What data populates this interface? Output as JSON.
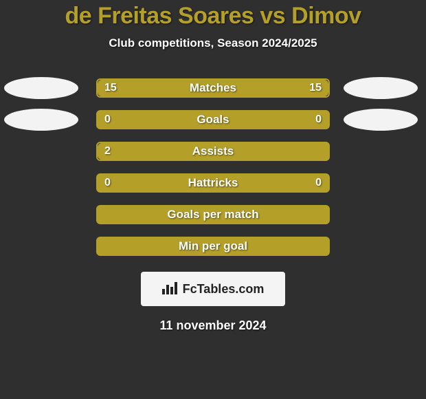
{
  "background_color": "#2f2f2f",
  "title": {
    "text": "de Freitas Soares vs Dimov",
    "color": "#b4a029",
    "fontsize": 34
  },
  "subtitle": {
    "text": "Club competitions, Season 2024/2025",
    "color": "#ffffff",
    "fontsize": 17
  },
  "badge_color": "#f3f3f3",
  "bar_style": {
    "fill_color": "#b4a029",
    "track_color": "#2f2f2f",
    "track_border": "#b4a029",
    "label_color": "#ffffff",
    "value_color": "#ffffff",
    "label_fontsize": 17,
    "value_fontsize": 16
  },
  "rows": [
    {
      "label": "Matches",
      "left": "15",
      "right": "15",
      "left_pct": 50,
      "right_pct": 50,
      "show_left_badge": true,
      "show_right_badge": true
    },
    {
      "label": "Goals",
      "left": "0",
      "right": "0",
      "left_pct": 100,
      "right_pct": 100,
      "show_left_badge": true,
      "show_right_badge": true
    },
    {
      "label": "Assists",
      "left": "2",
      "right": "",
      "left_pct": 100,
      "right_pct": 0,
      "show_left_badge": false,
      "show_right_badge": false
    },
    {
      "label": "Hattricks",
      "left": "0",
      "right": "0",
      "left_pct": 100,
      "right_pct": 100,
      "show_left_badge": false,
      "show_right_badge": false
    },
    {
      "label": "Goals per match",
      "left": "",
      "right": "",
      "left_pct": 100,
      "right_pct": 100,
      "show_left_badge": false,
      "show_right_badge": false
    },
    {
      "label": "Min per goal",
      "left": "",
      "right": "",
      "left_pct": 100,
      "right_pct": 100,
      "show_left_badge": false,
      "show_right_badge": false
    }
  ],
  "branding": {
    "text": "FcTables.com",
    "background_color": "#f4f4f4",
    "text_color": "#222222",
    "fontsize": 18
  },
  "date": {
    "text": "11 november 2024",
    "color": "#ffffff",
    "fontsize": 18
  }
}
